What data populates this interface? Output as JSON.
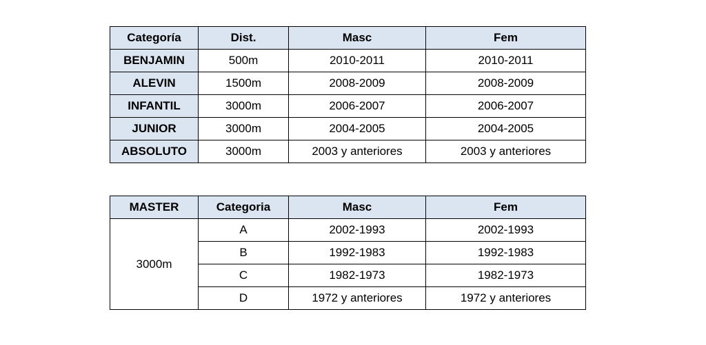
{
  "table1": {
    "header": [
      "Categoría",
      "Dist.",
      "Masc",
      "Fem"
    ],
    "rows": [
      [
        "BENJAMIN",
        "500m",
        "2010-2011",
        "2010-2011"
      ],
      [
        "ALEVIN",
        "1500m",
        "2008-2009",
        "2008-2009"
      ],
      [
        "INFANTIL",
        "3000m",
        "2006-2007",
        "2006-2007"
      ],
      [
        "JUNIOR",
        "3000m",
        "2004-2005",
        "2004-2005"
      ],
      [
        "ABSOLUTO",
        "3000m",
        "2003 y anteriores",
        "2003 y anteriores"
      ]
    ]
  },
  "table2": {
    "header": [
      "MASTER",
      "Categoria",
      "Masc",
      "Fem"
    ],
    "distance": "3000m",
    "rows": [
      [
        "A",
        "2002-1993",
        "2002-1993"
      ],
      [
        "B",
        "1992-1983",
        "1992-1983"
      ],
      [
        "C",
        "1982-1973",
        "1982-1973"
      ],
      [
        "D",
        "1972 y anteriores",
        "1972 y anteriores"
      ]
    ]
  }
}
